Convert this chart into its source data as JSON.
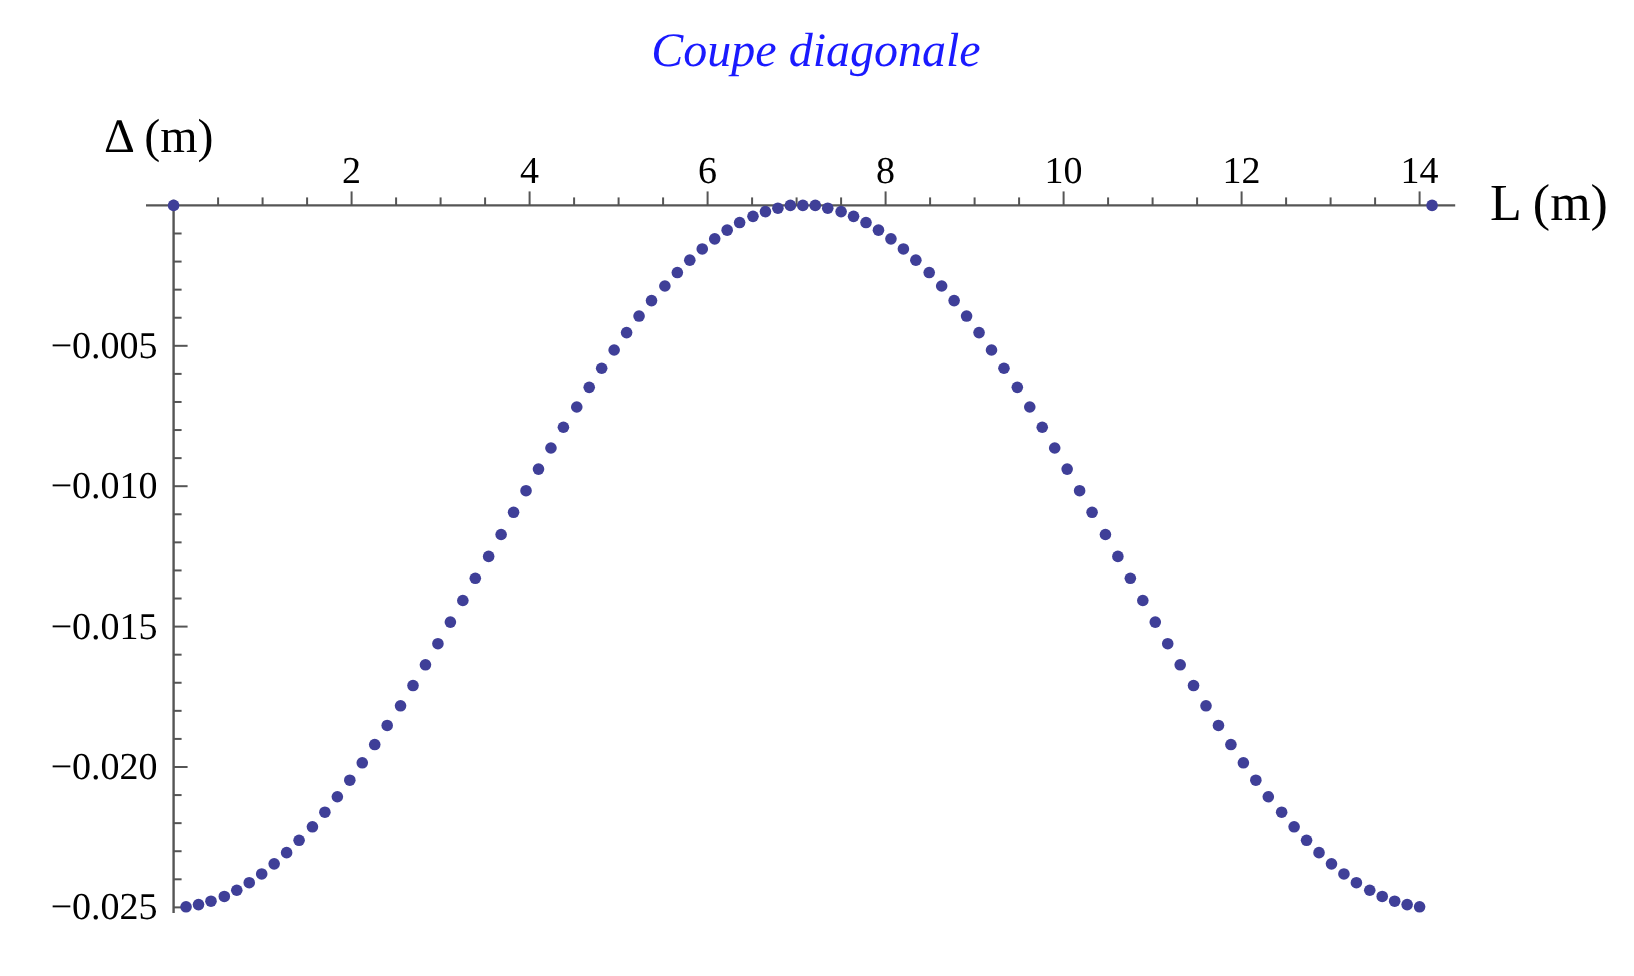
{
  "chart_data": {
    "type": "scatter",
    "title": "Coupe diagonale",
    "xlabel": "L (m)",
    "ylabel": "Δ (m)",
    "marker": "circle",
    "xlim": [
      -0.31,
      14.4
    ],
    "ylim": [
      -0.0252,
      0.0002
    ],
    "xticks": [
      {
        "value": 0.5,
        "label": null
      },
      {
        "value": 1,
        "label": null
      },
      {
        "value": 1.5,
        "label": null
      },
      2,
      {
        "value": 2.5,
        "label": null
      },
      {
        "value": 3,
        "label": null
      },
      {
        "value": 3.5,
        "label": null
      },
      4,
      {
        "value": 4.5,
        "label": null
      },
      {
        "value": 5,
        "label": null
      },
      {
        "value": 5.5,
        "label": null
      },
      6,
      {
        "value": 6.5,
        "label": null
      },
      {
        "value": 7,
        "label": null
      },
      {
        "value": 7.5,
        "label": null
      },
      8,
      {
        "value": 8.5,
        "label": null
      },
      {
        "value": 9,
        "label": null
      },
      {
        "value": 9.5,
        "label": null
      },
      10,
      {
        "value": 10.5,
        "label": null
      },
      {
        "value": 11,
        "label": null
      },
      {
        "value": 11.5,
        "label": null
      },
      12,
      {
        "value": 12.5,
        "label": null
      },
      {
        "value": 13,
        "label": null
      },
      {
        "value": 13.5,
        "label": null
      },
      14
    ],
    "yticks": [
      {
        "value": -0.001,
        "label": null
      },
      {
        "value": -0.002,
        "label": null
      },
      {
        "value": -0.003,
        "label": null
      },
      {
        "value": -0.004,
        "label": null
      },
      {
        "value": -0.005,
        "label": "−0.005"
      },
      {
        "value": -0.006,
        "label": null
      },
      {
        "value": -0.007,
        "label": null
      },
      {
        "value": -0.008,
        "label": null
      },
      {
        "value": -0.009,
        "label": null
      },
      {
        "value": -0.01,
        "label": "−0.010"
      },
      {
        "value": -0.011,
        "label": null
      },
      {
        "value": -0.012,
        "label": null
      },
      {
        "value": -0.013,
        "label": null
      },
      {
        "value": -0.014,
        "label": null
      },
      {
        "value": -0.015,
        "label": "−0.015"
      },
      {
        "value": -0.016,
        "label": null
      },
      {
        "value": -0.017,
        "label": null
      },
      {
        "value": -0.018,
        "label": null
      },
      {
        "value": -0.019,
        "label": null
      },
      {
        "value": -0.02,
        "label": "−0.020"
      },
      {
        "value": -0.021,
        "label": null
      },
      {
        "value": -0.022,
        "label": null
      },
      {
        "value": -0.023,
        "label": null
      },
      {
        "value": -0.024,
        "label": null
      },
      {
        "value": -0.025,
        "label": "−0.025"
      }
    ],
    "series": [
      {
        "color": "#3f3f98",
        "x": [
          0,
          0.14,
          0.28,
          0.42,
          0.57,
          0.71,
          0.85,
          0.99,
          1.13,
          1.27,
          1.41,
          1.56,
          1.7,
          1.84,
          1.98,
          2.12,
          2.26,
          2.4,
          2.55,
          2.69,
          2.83,
          2.97,
          3.11,
          3.25,
          3.39,
          3.54,
          3.68,
          3.82,
          3.96,
          4.1,
          4.24,
          4.38,
          4.53,
          4.67,
          4.81,
          4.95,
          5.09,
          5.23,
          5.37,
          5.52,
          5.66,
          5.8,
          5.94,
          6.08,
          6.22,
          6.36,
          6.51,
          6.65,
          6.79,
          6.93,
          7.07,
          7.21,
          7.35,
          7.5,
          7.64,
          7.78,
          7.92,
          8.06,
          8.2,
          8.34,
          8.49,
          8.63,
          8.77,
          8.91,
          9.05,
          9.19,
          9.33,
          9.48,
          9.62,
          9.76,
          9.9,
          10.04,
          10.18,
          10.32,
          10.47,
          10.61,
          10.75,
          10.89,
          11.03,
          11.17,
          11.31,
          11.46,
          11.6,
          11.74,
          11.88,
          12.02,
          12.16,
          12.3,
          12.45,
          12.59,
          12.73,
          12.87,
          13.01,
          13.15,
          13.29,
          13.44,
          13.58,
          13.72,
          13.86,
          14.0,
          14.14
        ],
        "values": [
          0,
          -0.02498,
          -0.0249,
          -0.02478,
          -0.02461,
          -0.02439,
          -0.02412,
          -0.02381,
          -0.02345,
          -0.02305,
          -0.02261,
          -0.02213,
          -0.02161,
          -0.02106,
          -0.02047,
          -0.01985,
          -0.0192,
          -0.01852,
          -0.01782,
          -0.0171,
          -0.01636,
          -0.01561,
          -0.01484,
          -0.01407,
          -0.01328,
          -0.0125,
          -0.01172,
          -0.01093,
          -0.01016,
          -0.00939,
          -0.00864,
          -0.0079,
          -0.00718,
          -0.00648,
          -0.0058,
          -0.00515,
          -0.00453,
          -0.00394,
          -0.00339,
          -0.00287,
          -0.00239,
          -0.00195,
          -0.00155,
          -0.00119,
          -0.00088,
          -0.00061,
          -0.00039,
          -0.00022,
          -0.0001,
          0,
          0,
          0,
          -0.0001,
          -0.00022,
          -0.00039,
          -0.00061,
          -0.00088,
          -0.00119,
          -0.00155,
          -0.00195,
          -0.00239,
          -0.00287,
          -0.00339,
          -0.00394,
          -0.00453,
          -0.00515,
          -0.0058,
          -0.00648,
          -0.00718,
          -0.0079,
          -0.00864,
          -0.00939,
          -0.01016,
          -0.01093,
          -0.01172,
          -0.0125,
          -0.01328,
          -0.01407,
          -0.01484,
          -0.01561,
          -0.01636,
          -0.0171,
          -0.01782,
          -0.01852,
          -0.0192,
          -0.01985,
          -0.02047,
          -0.02106,
          -0.02161,
          -0.02213,
          -0.02261,
          -0.02305,
          -0.02345,
          -0.02381,
          -0.02412,
          -0.02439,
          -0.02461,
          -0.02478,
          -0.0249,
          -0.02498,
          0
        ]
      }
    ]
  }
}
